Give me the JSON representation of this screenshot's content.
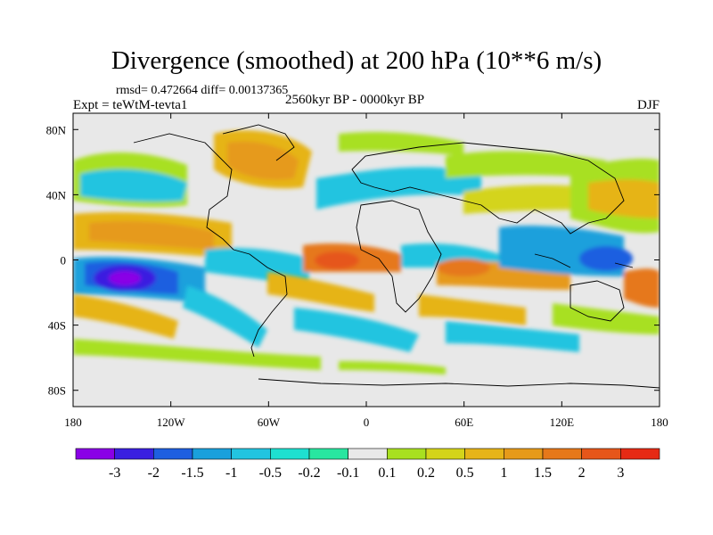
{
  "chart_data": {
    "type": "heatmap",
    "title": "Divergence (smoothed) at 200 hPa (10**6 m/s)",
    "stats": "rmsd= 0.472664 diff= 0.00137365",
    "experiment": "Expt = teWtM-tevta1",
    "period": "2560kyr BP - 0000kyr BP",
    "season": "DJF",
    "x_axis": {
      "range": [
        -180,
        180
      ],
      "ticks": [
        -180,
        -120,
        -60,
        0,
        60,
        120,
        180
      ],
      "tick_labels": [
        "180",
        "120W",
        "60W",
        "0",
        "60E",
        "120E",
        "180"
      ]
    },
    "y_axis": {
      "range": [
        -90,
        90
      ],
      "ticks": [
        80,
        40,
        0,
        -40,
        -80
      ],
      "tick_labels": [
        "80N",
        "40N",
        "0",
        "40S",
        "80S"
      ]
    },
    "colorbar": {
      "labels": [
        "-3",
        "-2",
        "-1.5",
        "-1",
        "-0.5",
        "-0.2",
        "-0.1",
        "0.1",
        "0.2",
        "0.5",
        "1",
        "1.5",
        "2",
        "3"
      ],
      "colors": [
        "#8a00e6",
        "#3a1fe0",
        "#1e5fe0",
        "#1aa0dc",
        "#22c4e0",
        "#1ee0d0",
        "#28e6a0",
        "#e8e8e8",
        "#a8e020",
        "#d4d41a",
        "#e6b418",
        "#e69a1a",
        "#e6781a",
        "#e6561a",
        "#e62a14"
      ]
    },
    "features": [
      {
        "name": "strong convergence central Pacific",
        "lon": -143,
        "lat": -8,
        "value": -3
      },
      {
        "name": "divergence tropical Atlantic",
        "lon": -15,
        "lat": 2,
        "value": 1.5
      },
      {
        "name": "divergence western Pacific",
        "lon": 165,
        "lat": -5,
        "value": 1.5
      },
      {
        "name": "convergence Indonesia",
        "lon": 140,
        "lat": 0,
        "value": -1.5
      },
      {
        "name": "divergence north Pacific",
        "lon": -150,
        "lat": 25,
        "value": 1
      },
      {
        "name": "convergence Africa",
        "lon": 25,
        "lat": 10,
        "value": -1
      },
      {
        "name": "divergence Indian Ocean",
        "lon": 60,
        "lat": -10,
        "value": 1
      },
      {
        "name": "convergence South Pacific",
        "lon": -115,
        "lat": -20,
        "value": -1
      }
    ]
  }
}
